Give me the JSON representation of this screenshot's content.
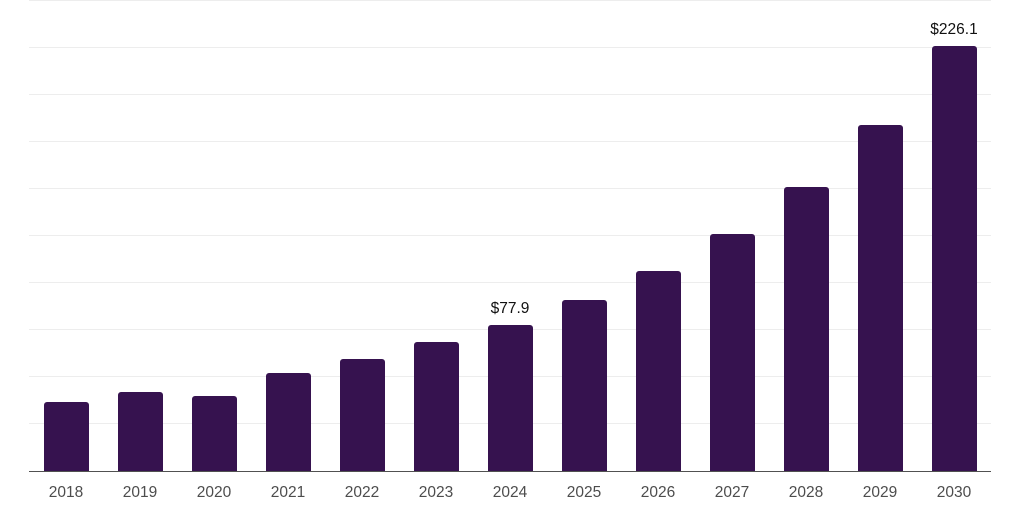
{
  "chart": {
    "bar_color": "#36124F",
    "axis_line_color": "#515151",
    "gridline_color": "#ededed",
    "tick_label_color": "#4d4d4d",
    "data_label_color": "#111111",
    "background_color": "#ffffff"
  },
  "chart_data": {
    "type": "bar",
    "title": "",
    "xlabel": "",
    "ylabel": "",
    "categories": [
      "2018",
      "2019",
      "2020",
      "2021",
      "2022",
      "2023",
      "2024",
      "2025",
      "2026",
      "2027",
      "2028",
      "2029",
      "2030"
    ],
    "values": [
      36.8,
      42.0,
      39.9,
      52.4,
      59.6,
      68.6,
      77.9,
      91.0,
      106.6,
      126.3,
      151.0,
      184.0,
      226.1
    ],
    "data_labels": [
      null,
      null,
      null,
      null,
      null,
      null,
      "$77.9",
      null,
      null,
      null,
      null,
      null,
      "$226.1"
    ],
    "ylim": [
      0,
      250
    ],
    "gridline_step": 25,
    "grid": true,
    "legend": false,
    "y_axis_labels_visible": false
  }
}
